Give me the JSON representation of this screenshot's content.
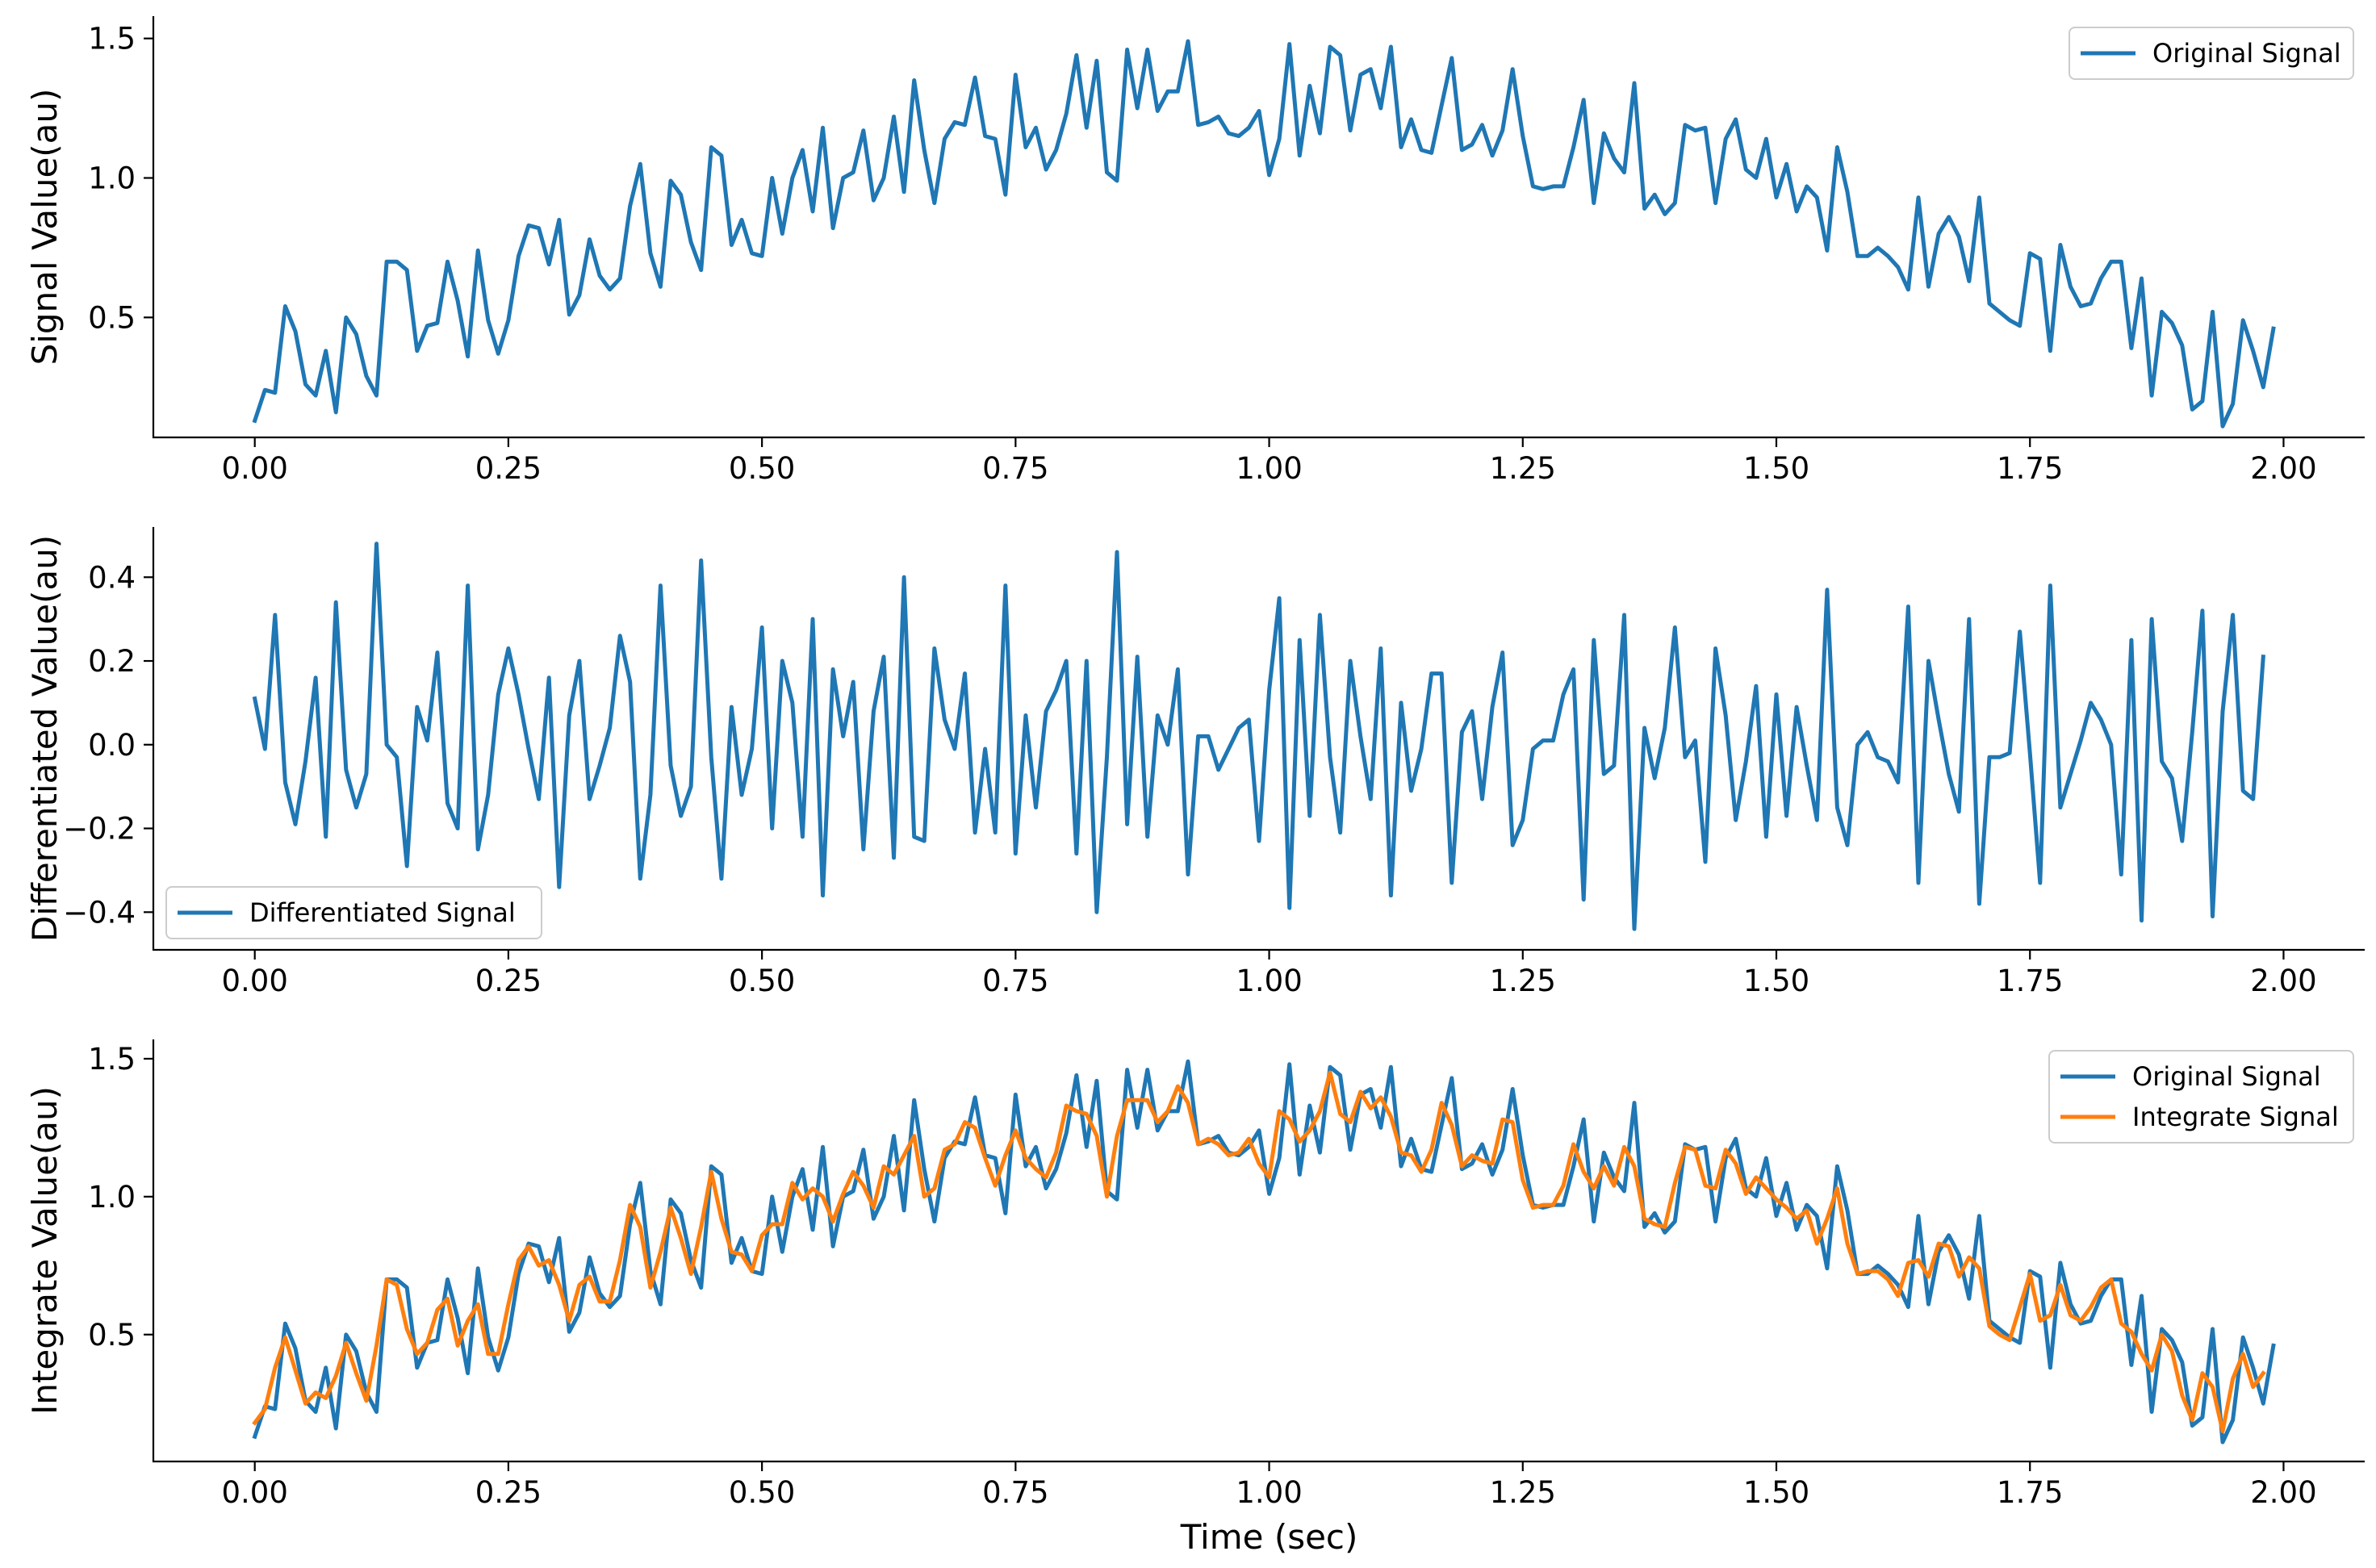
{
  "colors": {
    "blue": "#1f77b4",
    "orange": "#ff7f0e"
  },
  "chart_data": [
    {
      "type": "line",
      "ylabel": "Signal Value(au)",
      "xlabel": "",
      "xlim": [
        -0.1,
        2.08
      ],
      "ylim": [
        0.07,
        1.58
      ],
      "xticks": [
        0.0,
        0.25,
        0.5,
        0.75,
        1.0,
        1.25,
        1.5,
        1.75,
        2.0
      ],
      "xtick_labels": [
        "0.00",
        "0.25",
        "0.50",
        "0.75",
        "1.00",
        "1.25",
        "1.50",
        "1.75",
        "2.00"
      ],
      "yticks": [
        0.5,
        1.0,
        1.5
      ],
      "ytick_labels": [
        "0.5",
        "1.0",
        "1.5"
      ],
      "legend_position": "top-right",
      "series": [
        {
          "name": "Original Signal",
          "color": "#1f77b4",
          "x0": 0.0,
          "dx": 0.01,
          "values": [
            0.13,
            0.24,
            0.23,
            0.54,
            0.45,
            0.26,
            0.22,
            0.38,
            0.16,
            0.5,
            0.44,
            0.29,
            0.22,
            0.7,
            0.7,
            0.67,
            0.38,
            0.47,
            0.48,
            0.7,
            0.56,
            0.36,
            0.74,
            0.49,
            0.37,
            0.49,
            0.72,
            0.83,
            0.82,
            0.69,
            0.85,
            0.51,
            0.58,
            0.78,
            0.65,
            0.6,
            0.64,
            0.9,
            1.05,
            0.73,
            0.61,
            0.99,
            0.94,
            0.77,
            0.67,
            1.11,
            1.08,
            0.76,
            0.85,
            0.73,
            0.72,
            1.0,
            0.8,
            1.0,
            1.1,
            0.88,
            1.18,
            0.82,
            1.0,
            1.02,
            1.17,
            0.92,
            1.0,
            1.22,
            0.95,
            1.35,
            1.1,
            0.91,
            1.14,
            1.2,
            1.19,
            1.36,
            1.15,
            1.14,
            0.94,
            1.37,
            1.11,
            1.18,
            1.03,
            1.1,
            1.23,
            1.44,
            1.18,
            1.42,
            1.02,
            0.99,
            1.46,
            1.25,
            1.46,
            1.24,
            1.31,
            1.31,
            1.49,
            1.19,
            1.2,
            1.22,
            1.16,
            1.15,
            1.18,
            1.24,
            1.01,
            1.14,
            1.48,
            1.08,
            1.33,
            1.16,
            1.47,
            1.44,
            1.17,
            1.37,
            1.39,
            1.25,
            1.47,
            1.11,
            1.21,
            1.1,
            1.09,
            1.26,
            1.43,
            1.1,
            1.12,
            1.19,
            1.08,
            1.17,
            1.39,
            1.15,
            0.97,
            0.96,
            0.97,
            0.97,
            1.11,
            1.28,
            0.91,
            1.16,
            1.07,
            1.02,
            1.34,
            0.89,
            0.94,
            0.87,
            0.91,
            1.19,
            1.17,
            1.18,
            0.91,
            1.14,
            1.21,
            1.03,
            1.0,
            1.14,
            0.93,
            1.05,
            0.88,
            0.97,
            0.93,
            0.74,
            1.11,
            0.95,
            0.72,
            0.72,
            0.75,
            0.72,
            0.68,
            0.6,
            0.93,
            0.61,
            0.8,
            0.86,
            0.79,
            0.63,
            0.93,
            0.55,
            0.52,
            0.49,
            0.47,
            0.73,
            0.71,
            0.38,
            0.76,
            0.61,
            0.54,
            0.55,
            0.64,
            0.7,
            0.7,
            0.39,
            0.64,
            0.22,
            0.52,
            0.48,
            0.4,
            0.17,
            0.2,
            0.52,
            0.11,
            0.19,
            0.49,
            0.38,
            0.25,
            0.46
          ]
        }
      ]
    },
    {
      "type": "line",
      "ylabel": "Differentiated Value(au)",
      "xlabel": "",
      "xlim": [
        -0.1,
        2.08
      ],
      "ylim": [
        -0.49,
        0.52
      ],
      "xticks": [
        0.0,
        0.25,
        0.5,
        0.75,
        1.0,
        1.25,
        1.5,
        1.75,
        2.0
      ],
      "xtick_labels": [
        "0.00",
        "0.25",
        "0.50",
        "0.75",
        "1.00",
        "1.25",
        "1.50",
        "1.75",
        "2.00"
      ],
      "yticks": [
        -0.4,
        -0.2,
        0.0,
        0.2,
        0.4
      ],
      "ytick_labels": [
        "−0.4",
        "−0.2",
        "0.0",
        "0.2",
        "0.4"
      ],
      "legend_position": "bottom-left",
      "series": [
        {
          "name": "Differentiated Signal",
          "color": "#1f77b4",
          "x0": 0.0,
          "dx": 0.01,
          "values": [
            0.11,
            -0.01,
            0.31,
            -0.09,
            -0.19,
            -0.04,
            0.16,
            -0.22,
            0.34,
            -0.06,
            -0.15,
            -0.07,
            0.48,
            0.0,
            -0.03,
            -0.29,
            0.09,
            0.01,
            0.22,
            -0.14,
            -0.2,
            0.38,
            -0.25,
            -0.12,
            0.12,
            0.23,
            0.12,
            -0.01,
            -0.13,
            0.16,
            -0.34,
            0.07,
            0.2,
            -0.13,
            -0.05,
            0.04,
            0.26,
            0.15,
            -0.32,
            -0.12,
            0.38,
            -0.05,
            -0.17,
            -0.1,
            0.44,
            -0.03,
            -0.32,
            0.09,
            -0.12,
            -0.01,
            0.28,
            -0.2,
            0.2,
            0.1,
            -0.22,
            0.3,
            -0.36,
            0.18,
            0.02,
            0.15,
            -0.25,
            0.08,
            0.21,
            -0.27,
            0.4,
            -0.22,
            -0.23,
            0.23,
            0.06,
            -0.01,
            0.17,
            -0.21,
            -0.01,
            -0.21,
            0.38,
            -0.26,
            0.07,
            -0.15,
            0.08,
            0.13,
            0.2,
            -0.26,
            0.2,
            -0.4,
            -0.03,
            0.46,
            -0.19,
            0.21,
            -0.22,
            0.07,
            -0.0,
            0.18,
            -0.31,
            0.02,
            0.02,
            -0.06,
            -0.01,
            0.04,
            0.06,
            -0.23,
            0.13,
            0.35,
            -0.39,
            0.25,
            -0.17,
            0.31,
            -0.03,
            -0.21,
            0.2,
            0.02,
            -0.13,
            0.23,
            -0.36,
            0.1,
            -0.11,
            -0.01,
            0.17,
            0.17,
            -0.33,
            0.03,
            0.08,
            -0.13,
            0.09,
            0.22,
            -0.24,
            -0.18,
            -0.01,
            0.01,
            0.01,
            0.12,
            0.18,
            -0.37,
            0.25,
            -0.07,
            -0.05,
            0.31,
            -0.44,
            0.04,
            -0.08,
            0.04,
            0.28,
            -0.03,
            0.01,
            -0.28,
            0.23,
            0.07,
            -0.18,
            -0.04,
            0.14,
            -0.22,
            0.12,
            -0.17,
            0.09,
            -0.05,
            -0.18,
            0.37,
            -0.15,
            -0.24,
            0.0,
            0.03,
            -0.03,
            -0.04,
            -0.09,
            0.33,
            -0.33,
            0.2,
            0.06,
            -0.07,
            -0.16,
            0.3,
            -0.38,
            -0.03,
            -0.03,
            -0.02,
            0.27,
            -0.02,
            -0.33,
            0.38,
            -0.15,
            -0.07,
            0.01,
            0.1,
            0.06,
            -0.0,
            -0.31,
            0.25,
            -0.42,
            0.3,
            -0.04,
            -0.08,
            -0.23,
            0.03,
            0.32,
            -0.41,
            0.08,
            0.31,
            -0.11,
            -0.13,
            0.21
          ]
        }
      ]
    },
    {
      "type": "line",
      "ylabel": "Integrate Value(au)",
      "xlabel": "Time (sec)",
      "xlim": [
        -0.1,
        2.08
      ],
      "ylim": [
        0.04,
        1.57
      ],
      "xticks": [
        0.0,
        0.25,
        0.5,
        0.75,
        1.0,
        1.25,
        1.5,
        1.75,
        2.0
      ],
      "xtick_labels": [
        "0.00",
        "0.25",
        "0.50",
        "0.75",
        "1.00",
        "1.25",
        "1.50",
        "1.75",
        "2.00"
      ],
      "yticks": [
        0.5,
        1.0,
        1.5
      ],
      "ytick_labels": [
        "0.5",
        "1.0",
        "1.5"
      ],
      "legend_position": "top-right",
      "series": [
        {
          "name": "Original Signal",
          "color": "#1f77b4",
          "x0": 0.0,
          "dx": 0.01,
          "values": [
            0.13,
            0.24,
            0.23,
            0.54,
            0.45,
            0.26,
            0.22,
            0.38,
            0.16,
            0.5,
            0.44,
            0.29,
            0.22,
            0.7,
            0.7,
            0.67,
            0.38,
            0.47,
            0.48,
            0.7,
            0.56,
            0.36,
            0.74,
            0.49,
            0.37,
            0.49,
            0.72,
            0.83,
            0.82,
            0.69,
            0.85,
            0.51,
            0.58,
            0.78,
            0.65,
            0.6,
            0.64,
            0.9,
            1.05,
            0.73,
            0.61,
            0.99,
            0.94,
            0.77,
            0.67,
            1.11,
            1.08,
            0.76,
            0.85,
            0.73,
            0.72,
            1.0,
            0.8,
            1.0,
            1.1,
            0.88,
            1.18,
            0.82,
            1.0,
            1.02,
            1.17,
            0.92,
            1.0,
            1.22,
            0.95,
            1.35,
            1.1,
            0.91,
            1.14,
            1.2,
            1.19,
            1.36,
            1.15,
            1.14,
            0.94,
            1.37,
            1.11,
            1.18,
            1.03,
            1.1,
            1.23,
            1.44,
            1.18,
            1.42,
            1.02,
            0.99,
            1.46,
            1.25,
            1.46,
            1.24,
            1.31,
            1.31,
            1.49,
            1.19,
            1.2,
            1.22,
            1.16,
            1.15,
            1.18,
            1.24,
            1.01,
            1.14,
            1.48,
            1.08,
            1.33,
            1.16,
            1.47,
            1.44,
            1.17,
            1.37,
            1.39,
            1.25,
            1.47,
            1.11,
            1.21,
            1.1,
            1.09,
            1.26,
            1.43,
            1.1,
            1.12,
            1.19,
            1.08,
            1.17,
            1.39,
            1.15,
            0.97,
            0.96,
            0.97,
            0.97,
            1.11,
            1.28,
            0.91,
            1.16,
            1.07,
            1.02,
            1.34,
            0.89,
            0.94,
            0.87,
            0.91,
            1.19,
            1.17,
            1.18,
            0.91,
            1.14,
            1.21,
            1.03,
            1.0,
            1.14,
            0.93,
            1.05,
            0.88,
            0.97,
            0.93,
            0.74,
            1.11,
            0.95,
            0.72,
            0.72,
            0.75,
            0.72,
            0.68,
            0.6,
            0.93,
            0.61,
            0.8,
            0.86,
            0.79,
            0.63,
            0.93,
            0.55,
            0.52,
            0.49,
            0.47,
            0.73,
            0.71,
            0.38,
            0.76,
            0.61,
            0.54,
            0.55,
            0.64,
            0.7,
            0.7,
            0.39,
            0.64,
            0.22,
            0.52,
            0.48,
            0.4,
            0.17,
            0.2,
            0.52,
            0.11,
            0.19,
            0.49,
            0.38,
            0.25,
            0.46
          ]
        },
        {
          "name": "Integrate Signal",
          "color": "#ff7f0e",
          "x0": 0.0,
          "dx": 0.01,
          "values": [
            0.18,
            0.23,
            0.38,
            0.49,
            0.37,
            0.25,
            0.29,
            0.27,
            0.35,
            0.47,
            0.36,
            0.26,
            0.46,
            0.7,
            0.68,
            0.52,
            0.43,
            0.47,
            0.59,
            0.63,
            0.46,
            0.55,
            0.61,
            0.43,
            0.43,
            0.61,
            0.77,
            0.82,
            0.75,
            0.77,
            0.68,
            0.55,
            0.68,
            0.71,
            0.62,
            0.62,
            0.77,
            0.97,
            0.89,
            0.67,
            0.8,
            0.96,
            0.85,
            0.72,
            0.89,
            1.09,
            0.92,
            0.8,
            0.79,
            0.73,
            0.86,
            0.9,
            0.9,
            1.05,
            0.99,
            1.03,
            1.0,
            0.91,
            1.01,
            1.09,
            1.04,
            0.96,
            1.11,
            1.08,
            1.15,
            1.22,
            1.0,
            1.03,
            1.17,
            1.19,
            1.27,
            1.25,
            1.14,
            1.04,
            1.15,
            1.24,
            1.14,
            1.1,
            1.07,
            1.16,
            1.33,
            1.31,
            1.3,
            1.22,
            1.0,
            1.22,
            1.35,
            1.35,
            1.35,
            1.27,
            1.31,
            1.4,
            1.34,
            1.19,
            1.21,
            1.19,
            1.15,
            1.16,
            1.21,
            1.12,
            1.07,
            1.31,
            1.28,
            1.2,
            1.24,
            1.31,
            1.45,
            1.3,
            1.27,
            1.38,
            1.32,
            1.36,
            1.29,
            1.16,
            1.15,
            1.09,
            1.17,
            1.34,
            1.26,
            1.11,
            1.15,
            1.13,
            1.12,
            1.28,
            1.27,
            1.06,
            0.96,
            0.97,
            0.97,
            1.04,
            1.19,
            1.09,
            1.03,
            1.11,
            1.04,
            1.18,
            1.11,
            0.92,
            0.9,
            0.89,
            1.05,
            1.18,
            1.17,
            1.04,
            1.03,
            1.17,
            1.12,
            1.01,
            1.07,
            1.03,
            0.99,
            0.96,
            0.92,
            0.95,
            0.83,
            0.92,
            1.03,
            0.83,
            0.72,
            0.73,
            0.73,
            0.7,
            0.64,
            0.76,
            0.77,
            0.71,
            0.83,
            0.82,
            0.71,
            0.78,
            0.74,
            0.53,
            0.5,
            0.48,
            0.6,
            0.72,
            0.55,
            0.57,
            0.68,
            0.57,
            0.55,
            0.6,
            0.67,
            0.7,
            0.54,
            0.51,
            0.43,
            0.37,
            0.5,
            0.44,
            0.28,
            0.19,
            0.36,
            0.31,
            0.15,
            0.34,
            0.43,
            0.31,
            0.36
          ]
        }
      ]
    }
  ]
}
